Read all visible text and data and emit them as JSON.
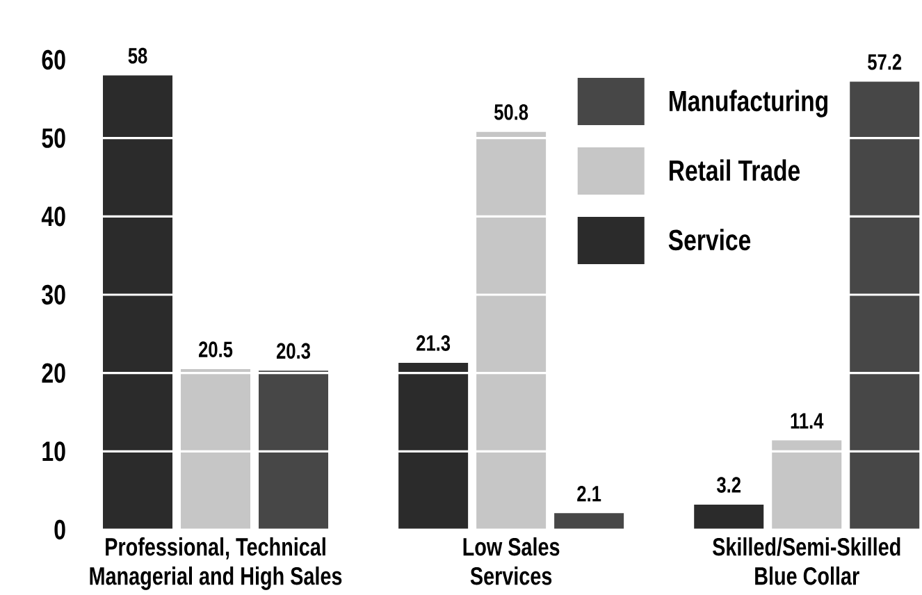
{
  "chart_data": {
    "type": "bar",
    "categories": [
      "Professional, Technical\nManagerial and High Sales",
      "Low Sales\nServices",
      "Skilled/Semi-Skilled\nBlue Collar"
    ],
    "series": [
      {
        "name": "Service",
        "color": "#2b2b2b",
        "values": [
          58,
          21.3,
          3.2
        ]
      },
      {
        "name": "Retail Trade",
        "color": "#c6c6c6",
        "values": [
          20.5,
          50.8,
          11.4
        ]
      },
      {
        "name": "Manufacturing",
        "color": "#474747",
        "values": [
          20.3,
          2.1,
          57.2
        ]
      }
    ],
    "ylim": [
      0,
      60
    ],
    "yticks": [
      0,
      10,
      20,
      30,
      40,
      50,
      60
    ],
    "grid": "y",
    "legend": "top right",
    "data_labels": true
  }
}
